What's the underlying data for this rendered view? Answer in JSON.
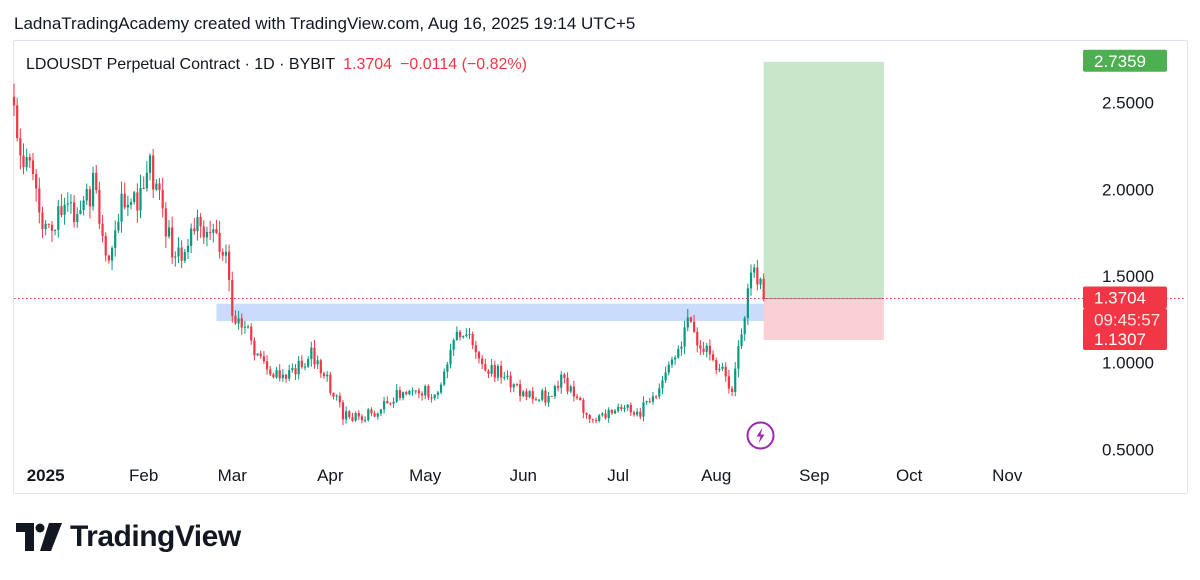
{
  "attribution": "LadnaTradingAcademy created with TradingView.com, Aug 16, 2025 19:14 UTC+5",
  "legend": {
    "symbol": "LDOUSDT Perpetual Contract · 1D · BYBIT",
    "price": "1.3704",
    "change": "−0.0114 (−0.82%)"
  },
  "brand": {
    "name": "TradingView"
  },
  "colors": {
    "up": "#089981",
    "down": "#f23645",
    "target": "#4caf50",
    "target_zone": "#c8e6c9",
    "stop_zone": "#fbd0d4",
    "support_zone": "#c9dcfb",
    "flash_icon": "#9c27b0"
  },
  "chart_data": {
    "type": "candlestick",
    "y_axis": {
      "ticks": [
        "2.5000",
        "2.0000",
        "1.5000",
        "1.0000",
        "0.5000"
      ],
      "tick_values": [
        2.5,
        2.0,
        1.5,
        1.0,
        0.5
      ],
      "range": [
        0.45,
        2.85
      ]
    },
    "x_axis": {
      "labels": [
        "2025",
        "Feb",
        "Mar",
        "Apr",
        "May",
        "Jun",
        "Jul",
        "Aug",
        "Sep",
        "Oct",
        "Nov"
      ],
      "label_dates": [
        "2025-01-01",
        "2025-02-01",
        "2025-03-01",
        "2025-04-01",
        "2025-05-01",
        "2025-06-01",
        "2025-07-01",
        "2025-08-01",
        "2025-09-01",
        "2025-10-01",
        "2025-11-01"
      ],
      "range": [
        "2024-12-22",
        "2025-11-24"
      ]
    },
    "price_labels": [
      {
        "kind": "target",
        "text": "2.7359",
        "value": 2.7359
      },
      {
        "kind": "last",
        "text": "1.3704",
        "value": 1.3704
      },
      {
        "kind": "countdown",
        "text": "09:45:57"
      },
      {
        "kind": "stop",
        "text": "1.1307",
        "value": 1.1307
      }
    ],
    "last_price": 1.3704,
    "position": {
      "entry": 1.3704,
      "target": 2.7359,
      "stop": 1.1307,
      "start": "2025-08-16",
      "end": "2025-09-23"
    },
    "support_zone": {
      "low": 1.24,
      "high": 1.34,
      "start": "2025-02-24",
      "end": "2025-08-20"
    },
    "event_marker": {
      "date": "2025-08-15",
      "value": 0.58
    },
    "closes": [
      [
        "2024-12-22",
        2.38
      ],
      [
        "2024-12-27",
        2.1
      ],
      [
        "2025-01-01",
        1.75
      ],
      [
        "2025-01-06",
        1.9
      ],
      [
        "2025-01-11",
        1.82
      ],
      [
        "2025-01-16",
        2.02
      ],
      [
        "2025-01-21",
        1.6
      ],
      [
        "2025-01-26",
        1.98
      ],
      [
        "2025-01-31",
        1.95
      ],
      [
        "2025-02-03",
        2.15
      ],
      [
        "2025-02-08",
        1.75
      ],
      [
        "2025-02-13",
        1.58
      ],
      [
        "2025-02-18",
        1.78
      ],
      [
        "2025-02-22",
        1.82
      ],
      [
        "2025-02-27",
        1.62
      ],
      [
        "2025-03-01",
        1.3
      ],
      [
        "2025-03-06",
        1.16
      ],
      [
        "2025-03-11",
        0.98
      ],
      [
        "2025-03-16",
        0.9
      ],
      [
        "2025-03-21",
        0.95
      ],
      [
        "2025-03-26",
        1.05
      ],
      [
        "2025-03-31",
        0.9
      ],
      [
        "2025-04-05",
        0.7
      ],
      [
        "2025-04-10",
        0.68
      ],
      [
        "2025-04-15",
        0.72
      ],
      [
        "2025-04-20",
        0.78
      ],
      [
        "2025-04-25",
        0.85
      ],
      [
        "2025-04-30",
        0.84
      ],
      [
        "2025-05-05",
        0.8
      ],
      [
        "2025-05-10",
        1.12
      ],
      [
        "2025-05-14",
        1.15
      ],
      [
        "2025-05-19",
        0.98
      ],
      [
        "2025-05-24",
        0.94
      ],
      [
        "2025-05-29",
        0.86
      ],
      [
        "2025-06-03",
        0.82
      ],
      [
        "2025-06-08",
        0.8
      ],
      [
        "2025-06-13",
        0.9
      ],
      [
        "2025-06-18",
        0.78
      ],
      [
        "2025-06-23",
        0.68
      ],
      [
        "2025-06-28",
        0.7
      ],
      [
        "2025-07-03",
        0.74
      ],
      [
        "2025-07-08",
        0.72
      ],
      [
        "2025-07-13",
        0.82
      ],
      [
        "2025-07-18",
        0.98
      ],
      [
        "2025-07-23",
        1.25
      ],
      [
        "2025-07-28",
        1.08
      ],
      [
        "2025-08-02",
        0.98
      ],
      [
        "2025-08-06",
        0.86
      ],
      [
        "2025-08-09",
        1.18
      ],
      [
        "2025-08-12",
        1.55
      ],
      [
        "2025-08-14",
        1.5
      ],
      [
        "2025-08-16",
        1.37
      ]
    ]
  }
}
